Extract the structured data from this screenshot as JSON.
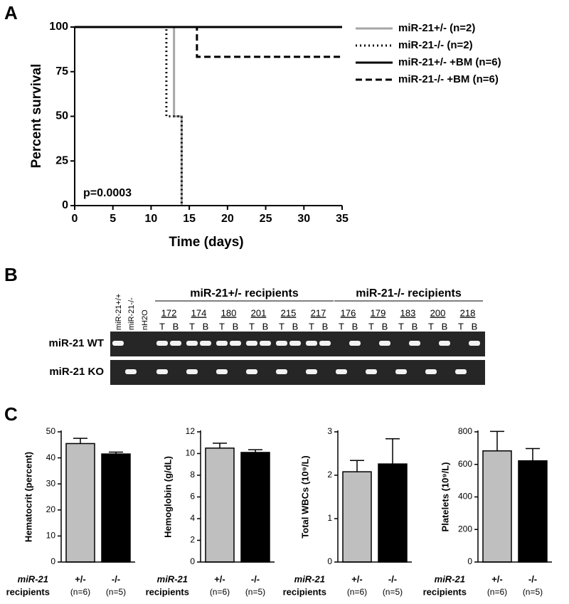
{
  "chart_data": [
    {
      "type": "step",
      "panel": "A",
      "xlabel": "Time (days)",
      "ylabel": "Percent survival",
      "annotation": "p=0.0003",
      "xlim": [
        0,
        35
      ],
      "ylim": [
        0,
        100
      ],
      "xticks": [
        0,
        5,
        10,
        15,
        20,
        25,
        30,
        35
      ],
      "yticks": [
        0,
        25,
        50,
        75,
        100
      ],
      "series": [
        {
          "name": "miR-21+/- (n=2)",
          "color": "#a6a6a6",
          "style": "solid",
          "x": [
            0,
            13,
            14
          ],
          "values": [
            100,
            50,
            0
          ]
        },
        {
          "name": "miR-21-/- (n=2)",
          "color": "#000000",
          "style": "dotted",
          "x": [
            0,
            12,
            14
          ],
          "values": [
            100,
            50,
            0
          ]
        },
        {
          "name": "miR-21+/- +BM (n=6)",
          "color": "#000000",
          "style": "solid",
          "x": [
            0,
            35
          ],
          "values": [
            100,
            100
          ]
        },
        {
          "name": "miR-21-/- +BM (n=6)",
          "color": "#000000",
          "style": "dashed",
          "x": [
            0,
            16,
            35
          ],
          "values": [
            100,
            83.3,
            83.3
          ]
        }
      ]
    },
    {
      "type": "gel",
      "panel": "B",
      "controls": [
        "miR-21+/+",
        "miR-21-/-",
        "nH2O"
      ],
      "lane_letters": [
        "T",
        "B"
      ],
      "groups": [
        {
          "label": "miR-21+/- recipients",
          "samples": [
            "172",
            "174",
            "180",
            "201",
            "215",
            "217"
          ]
        },
        {
          "label": "miR-21-/- recipients",
          "samples": [
            "176",
            "179",
            "183",
            "200",
            "218"
          ]
        }
      ],
      "rows": [
        {
          "label": "miR-21 WT",
          "bands": [
            1,
            0,
            0,
            1,
            1,
            1,
            1,
            1,
            1,
            1,
            1,
            1,
            1,
            1,
            1,
            0,
            1,
            0,
            1,
            0,
            1,
            0,
            1,
            0,
            1
          ]
        },
        {
          "label": "miR-21 KO",
          "bands": [
            0,
            1,
            0,
            1,
            0,
            1,
            0,
            1,
            0,
            1,
            0,
            1,
            0,
            1,
            0,
            1,
            0,
            1,
            0,
            1,
            0,
            1,
            0,
            1,
            0
          ]
        }
      ]
    },
    {
      "type": "bar",
      "panel": "C",
      "ylabel": "Hematocrit (percent)",
      "xlabel": [
        "miR-21",
        "recipients"
      ],
      "categories": [
        "+/-",
        "-/-"
      ],
      "sublabels": [
        "(n=6)",
        "(n=5)"
      ],
      "colors": [
        "#bfbfbf",
        "#000000"
      ],
      "values": [
        45.5,
        41.5
      ],
      "errors": [
        2,
        0.7
      ],
      "ylim": [
        0,
        50
      ],
      "yticks": [
        0,
        10,
        20,
        30,
        40,
        50
      ]
    },
    {
      "type": "bar",
      "ylabel": "Hemoglobin (g/dL)",
      "xlabel": [
        "miR-21",
        "recipients"
      ],
      "categories": [
        "+/-",
        "-/-"
      ],
      "sublabels": [
        "(n=6)",
        "(n=5)"
      ],
      "colors": [
        "#bfbfbf",
        "#000000"
      ],
      "values": [
        10.5,
        10.1
      ],
      "errors": [
        0.45,
        0.25
      ],
      "ylim": [
        0,
        12
      ],
      "yticks": [
        0,
        2,
        4,
        6,
        8,
        10,
        12
      ]
    },
    {
      "type": "bar",
      "ylabel": "Total WBCs (10⁹/L)",
      "xlabel": [
        "miR-21",
        "recipients"
      ],
      "categories": [
        "+/-",
        "-/-"
      ],
      "sublabels": [
        "(n=6)",
        "(n=5)"
      ],
      "colors": [
        "#bfbfbf",
        "#000000"
      ],
      "values": [
        2.08,
        2.26
      ],
      "errors": [
        0.26,
        0.58
      ],
      "ylim": [
        0,
        3
      ],
      "yticks": [
        0,
        1,
        2,
        3
      ]
    },
    {
      "type": "bar",
      "ylabel": "Platelets (10⁹/L)",
      "xlabel": [
        "miR-21",
        "recipients"
      ],
      "categories": [
        "+/-",
        "-/-"
      ],
      "sublabels": [
        "(n=6)",
        "(n=5)"
      ],
      "colors": [
        "#bfbfbf",
        "#000000"
      ],
      "values": [
        683,
        622
      ],
      "errors": [
        120,
        75
      ],
      "ylim": [
        0,
        800
      ],
      "yticks": [
        0,
        200,
        400,
        600,
        800
      ]
    }
  ]
}
